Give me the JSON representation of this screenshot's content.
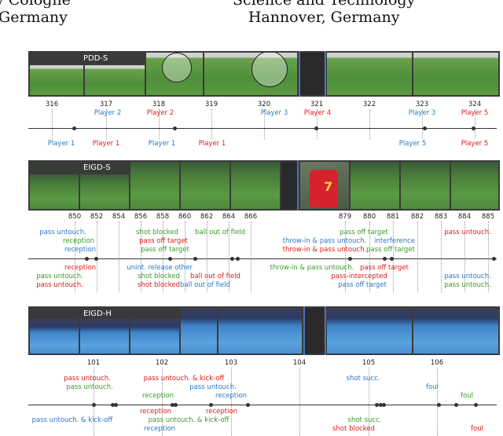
{
  "header": {
    "left_line1": "y Cologne",
    "left_line2": "Germany",
    "right_line1": "Science and Technology",
    "right_line2": "Hannover, Germany"
  },
  "strips": [
    {
      "label": "PDD-S",
      "ticks": [
        "316",
        "317",
        "318",
        "319",
        "320",
        "321",
        "322",
        "323",
        "324"
      ]
    },
    {
      "label": "EIGD-S",
      "ticks_a": [
        "850",
        "852",
        "854",
        "856",
        "858",
        "860",
        "862",
        "864",
        "866"
      ],
      "ticks_b": [
        "879",
        "880",
        "881",
        "882",
        "883",
        "884",
        "885"
      ]
    },
    {
      "label": "EIGD-H",
      "ticks": [
        "101",
        "102",
        "103",
        "104",
        "105",
        "106"
      ]
    }
  ],
  "pdd_labels_above": [
    {
      "text": "Player 2",
      "color": "blue"
    },
    {
      "text": "Player 2",
      "color": "red"
    },
    {
      "text": "Player 3",
      "color": "blue"
    },
    {
      "text": "Player 4",
      "color": "red"
    },
    {
      "text": "Player 3",
      "color": "blue"
    },
    {
      "text": "Player 5",
      "color": "red"
    }
  ],
  "pdd_labels_below": [
    {
      "text": "Player 1",
      "color": "blue"
    },
    {
      "text": "Player 1",
      "color": "red"
    },
    {
      "text": "Player 1",
      "color": "blue"
    },
    {
      "text": "Player 1",
      "color": "red"
    },
    {
      "text": "Player 5",
      "color": "blue"
    },
    {
      "text": "Player 5",
      "color": "red"
    }
  ],
  "eigds_labels": [
    {
      "text": "pass untouch.",
      "color": "blue"
    },
    {
      "text": "reception",
      "color": "green"
    },
    {
      "text": "reception",
      "color": "blue"
    },
    {
      "text": "reception",
      "color": "red"
    },
    {
      "text": "pass untouch.",
      "color": "green"
    },
    {
      "text": "pass untouch.",
      "color": "red"
    },
    {
      "text": "shot blocked",
      "color": "green"
    },
    {
      "text": "pass off target",
      "color": "red"
    },
    {
      "text": "pass off target",
      "color": "green"
    },
    {
      "text": "ball out of field",
      "color": "green"
    },
    {
      "text": "unint. release other",
      "color": "blue"
    },
    {
      "text": "shot blocked",
      "color": "green"
    },
    {
      "text": "shot blocked",
      "color": "red"
    },
    {
      "text": "ball out of field",
      "color": "red"
    },
    {
      "text": "ball out of field",
      "color": "blue"
    },
    {
      "text": "pass off target",
      "color": "green"
    },
    {
      "text": "throw-in & pass untouch.",
      "color": "blue"
    },
    {
      "text": "throw-in & pass untouch.",
      "color": "red"
    },
    {
      "text": "interference",
      "color": "blue"
    },
    {
      "text": "pass off target",
      "color": "green"
    },
    {
      "text": "pass untouch.",
      "color": "red"
    },
    {
      "text": "throw-in & pass untouch.",
      "color": "green"
    },
    {
      "text": "pass off target",
      "color": "red"
    },
    {
      "text": "pass-intercepted",
      "color": "red"
    },
    {
      "text": "pass off target",
      "color": "blue"
    },
    {
      "text": "pass untouch.",
      "color": "blue"
    },
    {
      "text": "pass untouch.",
      "color": "green"
    }
  ],
  "eigdh_labels": [
    {
      "text": "pass untouch.",
      "color": "red"
    },
    {
      "text": "pass untouch.",
      "color": "green"
    },
    {
      "text": "pass untouch. & kick-off",
      "color": "red"
    },
    {
      "text": "pass untouch.",
      "color": "blue"
    },
    {
      "text": "reception",
      "color": "green"
    },
    {
      "text": "reception",
      "color": "blue"
    },
    {
      "text": "shot succ.",
      "color": "blue"
    },
    {
      "text": "foul",
      "color": "blue"
    },
    {
      "text": "foul",
      "color": "green"
    },
    {
      "text": "pass untouch. & kick-off",
      "color": "blue"
    },
    {
      "text": "reception",
      "color": "red"
    },
    {
      "text": "reception",
      "color": "red"
    },
    {
      "text": "pass untouch. & kick-off",
      "color": "green"
    },
    {
      "text": "reception",
      "color": "blue"
    },
    {
      "text": "shot succ.",
      "color": "green"
    },
    {
      "text": "shot blocked",
      "color": "red"
    },
    {
      "text": "foul",
      "color": "red"
    }
  ],
  "colors": {
    "blue": "#2b78c4",
    "red": "#e01b1b",
    "green": "#3a9a2a"
  }
}
